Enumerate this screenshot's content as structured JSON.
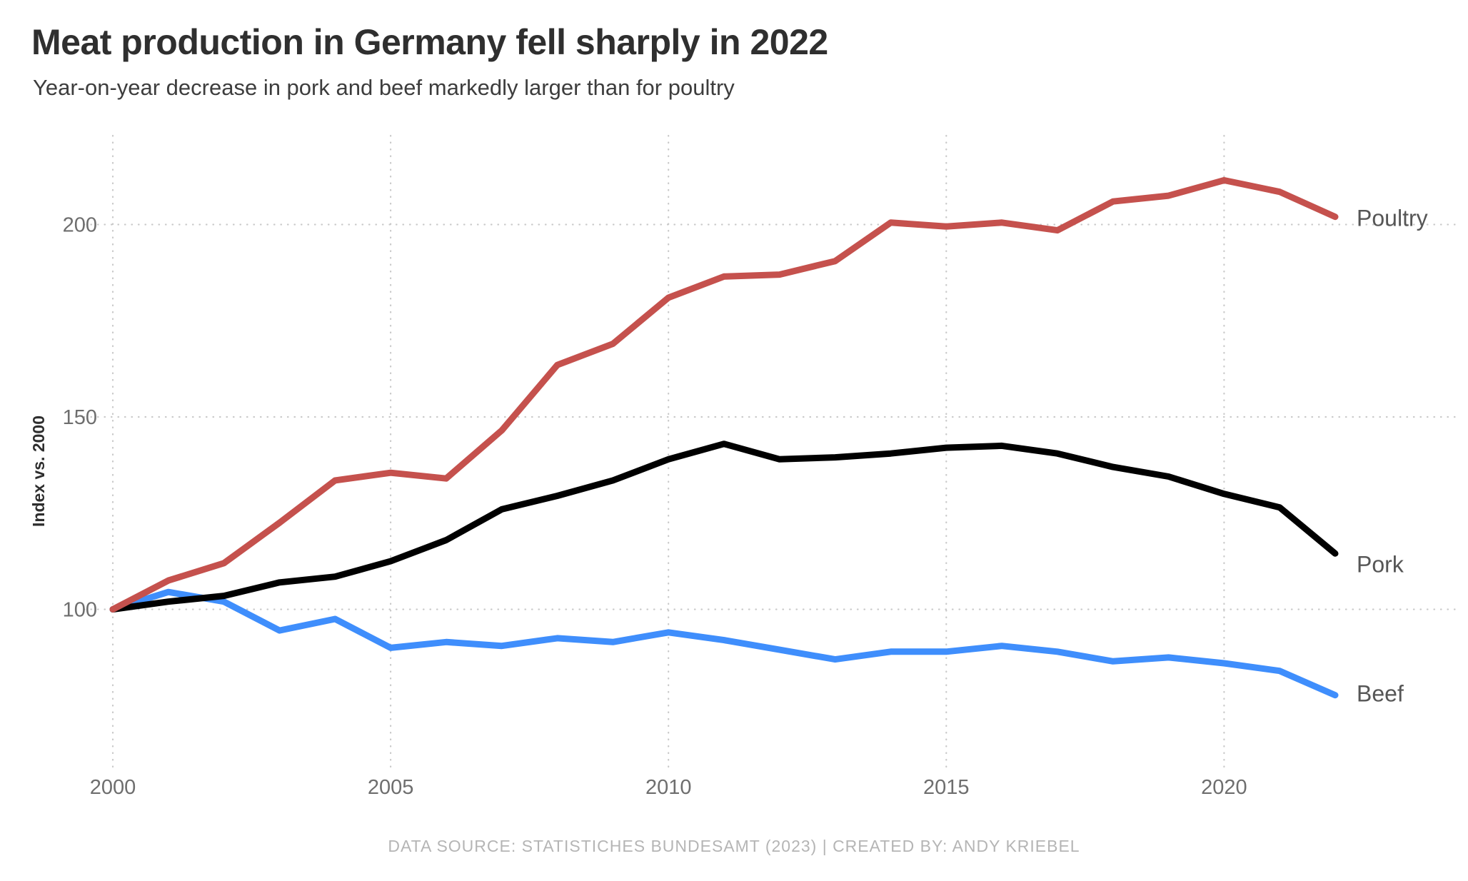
{
  "header": {
    "title": "Meat production in Germany fell sharply in 2022",
    "subtitle": "Year-on-year decrease in pork and beef markedly larger than for poultry"
  },
  "footer": {
    "text": "DATA SOURCE: STATISTICHES BUNDESAMT (2023)  |  CREATED BY: ANDY KRIEBEL"
  },
  "chart_data": {
    "type": "line",
    "title": "Meat production in Germany fell sharply in 2022",
    "subtitle": "Year-on-year decrease in pork and beef markedly larger than for poultry",
    "xlabel": "",
    "ylabel": "Index vs. 2000",
    "x": [
      2000,
      2001,
      2002,
      2003,
      2004,
      2005,
      2006,
      2007,
      2008,
      2009,
      2010,
      2011,
      2012,
      2013,
      2014,
      2015,
      2016,
      2017,
      2018,
      2019,
      2020,
      2021,
      2022
    ],
    "x_tick_labels": [
      "2000",
      "2005",
      "2010",
      "2015",
      "2020"
    ],
    "x_tick_years": [
      2000,
      2005,
      2010,
      2015,
      2020
    ],
    "y_tick_values": [
      100,
      150,
      200
    ],
    "y_tick_labels": [
      "100",
      "150",
      "200"
    ],
    "xlim": [
      2000,
      2022
    ],
    "ylim": [
      58,
      222
    ],
    "grid": "dotted",
    "legend_position": "line-end-labels-right",
    "series": [
      {
        "name": "Beef",
        "color": "#3f8efc",
        "values": [
          100,
          104.5,
          102,
          94.5,
          97.5,
          90,
          91.5,
          90.5,
          92.5,
          91.5,
          94,
          92,
          89.5,
          87,
          89,
          89,
          90.5,
          89,
          86.5,
          87.5,
          86,
          84,
          77.7
        ]
      },
      {
        "name": "Pork",
        "color": "#000000",
        "values": [
          100,
          102,
          103.5,
          107,
          108.5,
          112.5,
          118,
          126,
          129.5,
          133.5,
          139,
          143,
          139,
          139.5,
          140.5,
          142,
          142.5,
          140.5,
          137,
          134.5,
          130,
          126.5,
          114.5
        ]
      },
      {
        "name": "Poultry",
        "color": "#c5514d",
        "values": [
          100,
          107.5,
          112,
          122.5,
          133.5,
          135.5,
          134,
          146.5,
          163.5,
          169,
          181,
          186.5,
          187,
          190.5,
          200.5,
          199.5,
          200.5,
          198.5,
          206,
          207.5,
          211.5,
          208.5,
          202
        ]
      }
    ]
  }
}
